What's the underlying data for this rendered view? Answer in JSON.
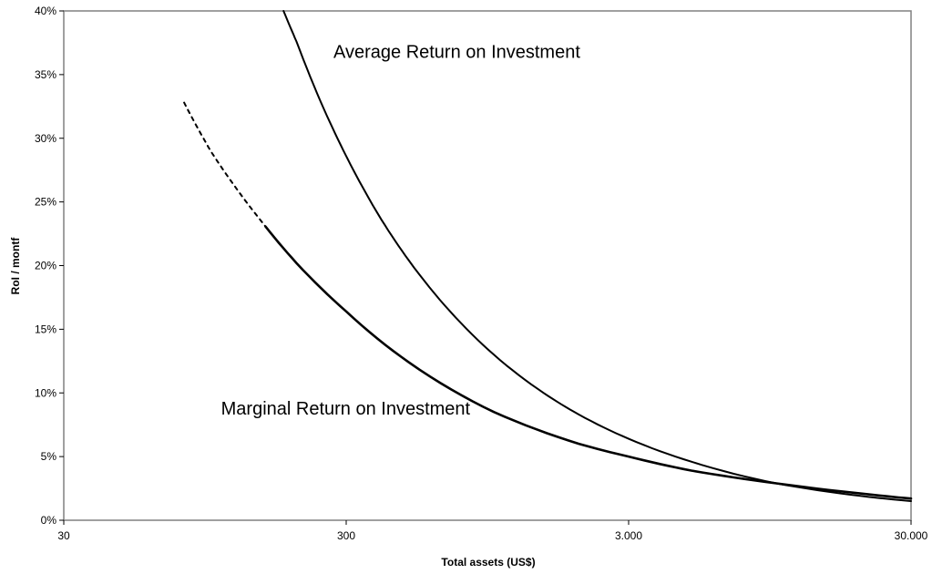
{
  "chart_data": {
    "type": "line",
    "title": "",
    "xlabel": "Total assets (US$)",
    "ylabel": "RoI / montf",
    "x_scale": "log",
    "xlim": [
      30,
      30000
    ],
    "ylim": [
      0,
      40
    ],
    "x_ticks": [
      {
        "value": 30,
        "label": "30"
      },
      {
        "value": 300,
        "label": "300"
      },
      {
        "value": 3000,
        "label": "3.000"
      },
      {
        "value": 30000,
        "label": "30.000"
      }
    ],
    "y_ticks": [
      {
        "value": 0,
        "label": "0%"
      },
      {
        "value": 5,
        "label": "5%"
      },
      {
        "value": 10,
        "label": "10%"
      },
      {
        "value": 15,
        "label": "15%"
      },
      {
        "value": 20,
        "label": "20%"
      },
      {
        "value": 25,
        "label": "25%"
      },
      {
        "value": 30,
        "label": "30%"
      },
      {
        "value": 35,
        "label": "35%"
      },
      {
        "value": 40,
        "label": "40%"
      }
    ],
    "grid": false,
    "legend": "none",
    "series": [
      {
        "name": "Average Return on Investment",
        "x": [
          180,
          200,
          250,
          300,
          400,
          500,
          700,
          1000,
          1500,
          2000,
          3000,
          5000,
          10000,
          20000,
          30000
        ],
        "y": [
          40.0,
          37.6,
          32.3,
          28.6,
          23.6,
          20.4,
          16.4,
          13.0,
          10.0,
          8.3,
          6.4,
          4.6,
          2.9,
          1.9,
          1.5
        ]
      },
      {
        "name": "Marginal Return on Investment",
        "x": [
          80,
          100,
          150,
          200,
          300,
          500,
          1000,
          2000,
          3000,
          5000,
          10000,
          20000,
          30000
        ],
        "y": [
          32.8,
          28.9,
          23.5,
          20.2,
          16.4,
          12.4,
          8.5,
          6.0,
          5.0,
          3.9,
          2.9,
          2.1,
          1.7
        ]
      }
    ],
    "dashed_until_x": {
      "Marginal Return on Investment": 160
    },
    "annotations": [
      {
        "text": "Average Return on Investment",
        "x": 300,
        "y": 36.8
      },
      {
        "text": "Marginal Return on Investment",
        "x": 120,
        "y": 8.8
      }
    ]
  }
}
